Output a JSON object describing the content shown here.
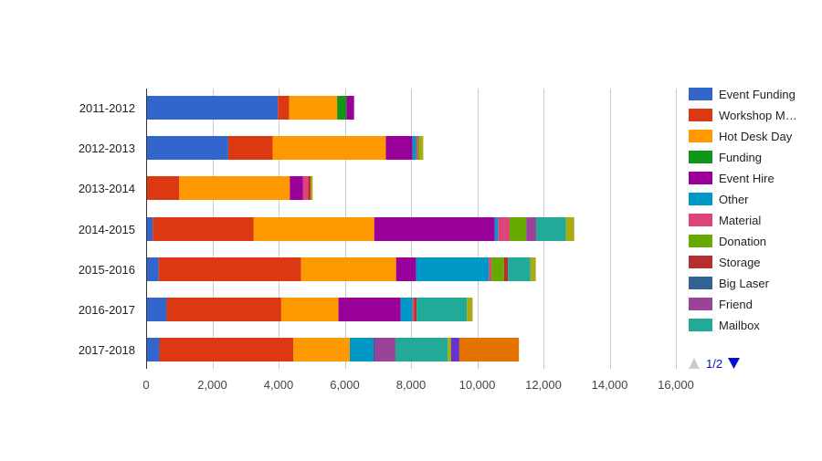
{
  "chart_data": {
    "type": "bar",
    "orientation": "horizontal",
    "stacked": true,
    "title": "",
    "xlabel": "",
    "ylabel": "",
    "xlim": [
      0,
      16000
    ],
    "x_ticks": [
      "0",
      "2,000",
      "4,000",
      "6,000",
      "8,000",
      "10,000",
      "12,000",
      "14,000",
      "16,000"
    ],
    "x_tick_values": [
      0,
      2000,
      4000,
      6000,
      8000,
      10000,
      12000,
      14000,
      16000
    ],
    "grid": true,
    "legend_position": "right",
    "categories": [
      "2011-2012",
      "2012-2013",
      "2013-2014",
      "2014-2015",
      "2015-2016",
      "2016-2017",
      "2017-2018"
    ],
    "series": [
      {
        "name": "Event Funding",
        "color": "#3366cc",
        "values": [
          3980,
          2480,
          0,
          200,
          380,
          620,
          400
        ]
      },
      {
        "name": "Workshop Materials",
        "color": "#dc3912",
        "values": [
          340,
          1340,
          1000,
          3050,
          4300,
          3460,
          4050
        ]
      },
      {
        "name": "Hot Desk Day",
        "color": "#ff9900",
        "values": [
          1450,
          3420,
          3340,
          3640,
          2870,
          1730,
          1700
        ]
      },
      {
        "name": "Funding",
        "color": "#109618",
        "values": [
          280,
          0,
          0,
          0,
          0,
          0,
          0
        ]
      },
      {
        "name": "Event Hire",
        "color": "#990099",
        "values": [
          230,
          800,
          400,
          3640,
          600,
          1880,
          0
        ]
      },
      {
        "name": "Other",
        "color": "#0099c6",
        "values": [
          0,
          110,
          0,
          100,
          2200,
          350,
          700
        ]
      },
      {
        "name": "Material",
        "color": "#dd4477",
        "values": [
          0,
          60,
          150,
          350,
          80,
          50,
          0
        ]
      },
      {
        "name": "Donation",
        "color": "#66aa00",
        "values": [
          0,
          60,
          0,
          500,
          380,
          0,
          0
        ]
      },
      {
        "name": "Storage",
        "color": "#b82e2e",
        "values": [
          0,
          0,
          80,
          0,
          120,
          80,
          0
        ]
      },
      {
        "name": "Big Laser",
        "color": "#316395",
        "values": [
          0,
          0,
          0,
          0,
          0,
          0,
          60
        ]
      },
      {
        "name": "Friend",
        "color": "#994499",
        "values": [
          0,
          0,
          0,
          300,
          0,
          0,
          620
        ]
      },
      {
        "name": "Mailbox",
        "color": "#22aa99",
        "values": [
          0,
          0,
          0,
          900,
          680,
          1520,
          1580
        ]
      },
      {
        "name": "",
        "color": "#aaaa11",
        "values": [
          0,
          100,
          60,
          250,
          160,
          170,
          100
        ]
      },
      {
        "name": "",
        "color": "#6633cc",
        "values": [
          0,
          0,
          0,
          0,
          0,
          0,
          250
        ]
      },
      {
        "name": "",
        "color": "#e67300",
        "values": [
          0,
          0,
          0,
          0,
          0,
          0,
          1800
        ]
      }
    ],
    "legend": {
      "entries": [
        "Event Funding",
        "Workshop M…",
        "Hot Desk Day",
        "Funding",
        "Event Hire",
        "Other",
        "Material",
        "Donation",
        "Storage",
        "Big Laser",
        "Friend",
        "Mailbox"
      ],
      "page_label": "1/2"
    }
  }
}
